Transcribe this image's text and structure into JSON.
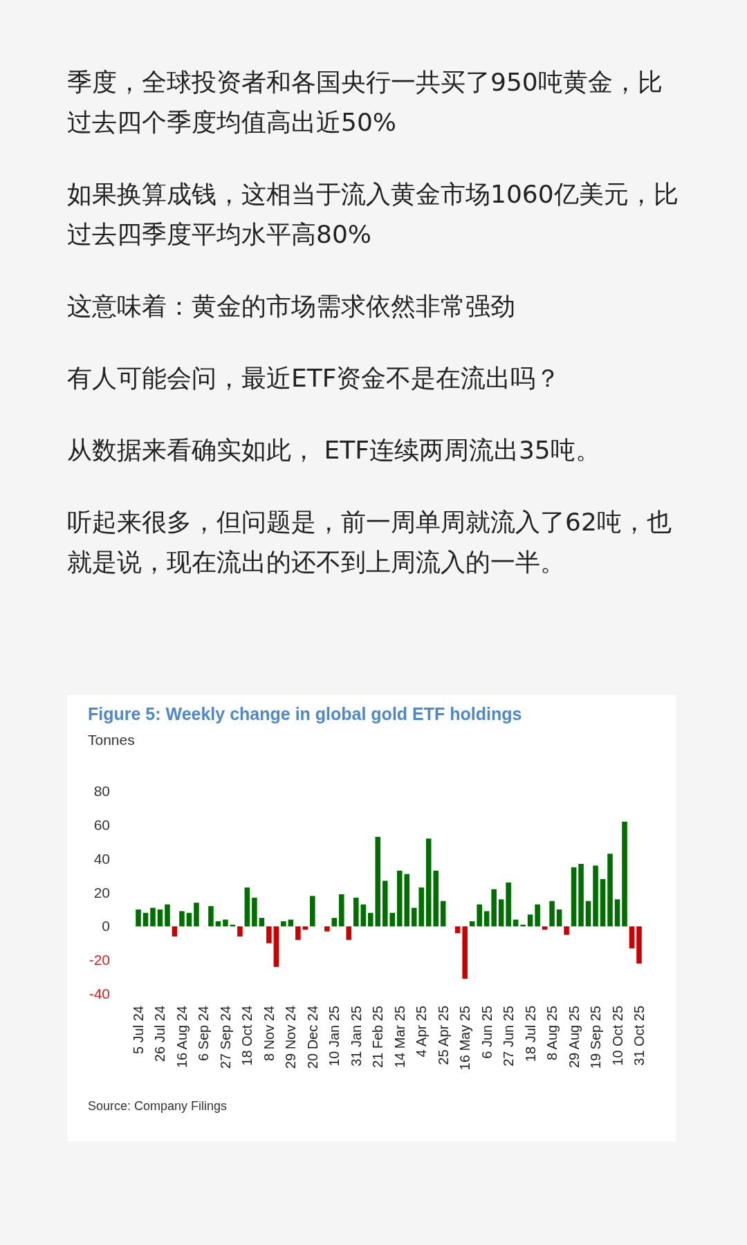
{
  "chart_data": {
    "type": "bar",
    "title": "Figure 5: Weekly change in global gold ETF holdings",
    "ylabel": "Tonnes",
    "categories": [
      "5 Jul 24",
      null,
      null,
      "26 Jul 24",
      null,
      null,
      "16 Aug 24",
      null,
      null,
      "6 Sep 24",
      null,
      null,
      "27 Sep 24",
      null,
      null,
      "18 Oct 24",
      null,
      null,
      "8 Nov 24",
      null,
      null,
      "29 Nov 24",
      null,
      null,
      "20 Dec 24",
      null,
      null,
      "10 Jan 25",
      null,
      null,
      "31 Jan 25",
      null,
      null,
      "21 Feb 25",
      null,
      null,
      "14 Mar 25",
      null,
      null,
      "4 Apr 25",
      null,
      null,
      "25 Apr 25",
      null,
      null,
      "16 May 25",
      null,
      null,
      "6 Jun 25",
      null,
      null,
      "27 Jun 25",
      null,
      null,
      "18 Jul 25",
      null,
      null,
      "8 Aug 25",
      null,
      null,
      "29 Aug 25",
      null,
      null,
      "19 Sep 25",
      null,
      null,
      "10 Oct 25",
      null,
      null,
      "31 Oct 25"
    ],
    "values": [
      10,
      8,
      11,
      10,
      13,
      -6,
      9,
      8,
      14,
      0,
      12,
      3,
      4,
      1,
      -6,
      23,
      17,
      5,
      -10,
      -24,
      3,
      4,
      -8,
      -2,
      18,
      0,
      -3,
      5,
      19,
      -8,
      17,
      13,
      8,
      53,
      27,
      8,
      33,
      31,
      11,
      23,
      52,
      33,
      15,
      0,
      -4,
      -31,
      3,
      13,
      9,
      22,
      16,
      26,
      4,
      1,
      7,
      13,
      -2,
      15,
      10,
      -5,
      35,
      37,
      15,
      36,
      28,
      43,
      16,
      62,
      -13,
      -22
    ],
    "colors": [
      "#006e00",
      "#006e00",
      "#006e00",
      "#006e00",
      "#006e00",
      "#cc0000",
      "#006e00",
      "#006e00",
      "#006e00",
      "#006e00",
      "#006e00",
      "#006e00",
      "#006e00",
      "#006e00",
      "#cc0000",
      "#006e00",
      "#006e00",
      "#006e00",
      "#cc0000",
      "#cc0000",
      "#006e00",
      "#006e00",
      "#cc0000",
      "#cc0000",
      "#006e00",
      "#006e00",
      "#cc0000",
      "#006e00",
      "#006e00",
      "#cc0000",
      "#006e00",
      "#006e00",
      "#006e00",
      "#006e00",
      "#006e00",
      "#006e00",
      "#006e00",
      "#006e00",
      "#006e00",
      "#006e00",
      "#006e00",
      "#006e00",
      "#006e00",
      "#006e00",
      "#cc0000",
      "#cc0000",
      "#006e00",
      "#006e00",
      "#006e00",
      "#006e00",
      "#006e00",
      "#006e00",
      "#006e00",
      "#006e00",
      "#006e00",
      "#006e00",
      "#cc0000",
      "#006e00",
      "#006e00",
      "#cc0000",
      "#006e00",
      "#006e00",
      "#006e00",
      "#006e00",
      "#006e00",
      "#006e00",
      "#006e00",
      "#006e00",
      "#cc0000",
      "#cc0000"
    ],
    "ylim": [
      -40,
      80
    ],
    "yticks": [
      -40,
      -20,
      0,
      20,
      40,
      60,
      80
    ],
    "annotations": [
      "季度，全球投资者和各国央行一共买了950吨黄金，比过去四个季度均值高出近50%",
      "如果换算成钱，这相当于流入黄金市场1060亿美元，比过去四季度平均水平高80%",
      "这意味着：黄金的市场需求依然非常强劲",
      "有人可能会问，最近ETF资金不是在流出吗？",
      "从数据来看确实如此， ETF连续两周流出35吨。",
      "听起来很多，但问题是，前一周单周就流入了62吨，也就是说，现在流出的还不到上周流入的一半。",
      "Source: Company Filings"
    ]
  }
}
